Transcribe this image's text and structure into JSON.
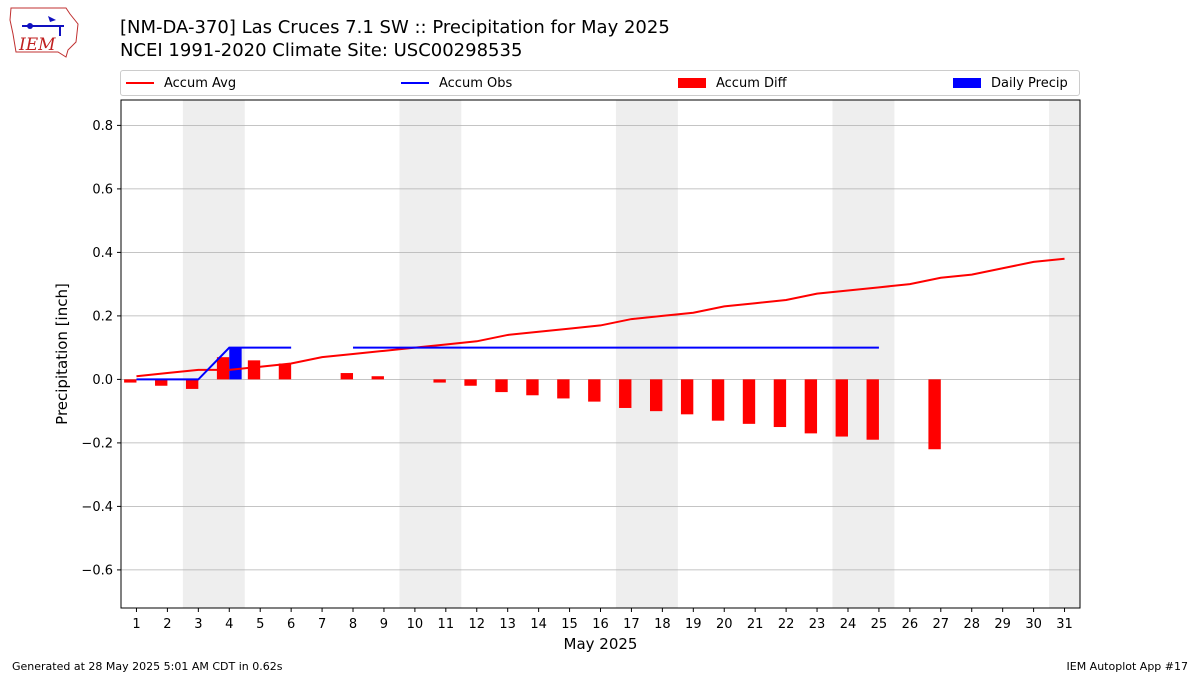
{
  "header": {
    "title_line1": "[NM-DA-370] Las Cruces 7.1 SW :: Precipitation for May 2025",
    "title_line2": "NCEI 1991-2020 Climate Site: USC00298535",
    "logo_text": "IEM"
  },
  "legend": {
    "items": [
      {
        "label": "Accum Avg",
        "kind": "line",
        "color": "#ff0000"
      },
      {
        "label": "Accum Obs",
        "kind": "line",
        "color": "#0000ff"
      },
      {
        "label": "Accum Diff",
        "kind": "box",
        "color": "#ff0000"
      },
      {
        "label": "Daily Precip",
        "kind": "box",
        "color": "#0000ff"
      }
    ]
  },
  "footer": {
    "left": "Generated at 28 May 2025 5:01 AM CDT in 0.62s",
    "right": "IEM Autoplot App #17"
  },
  "chart_data": {
    "type": "bar",
    "xlabel": "May 2025",
    "ylabel": "Precipitation [inch]",
    "ylim": [
      -0.72,
      0.88
    ],
    "xlim": [
      0.5,
      31.5
    ],
    "yticks": [
      -0.6,
      -0.4,
      -0.2,
      0.0,
      0.2,
      0.4,
      0.6,
      0.8
    ],
    "ytick_labels": [
      "−0.6",
      "−0.4",
      "−0.2",
      "0.0",
      "0.2",
      "0.4",
      "0.6",
      "0.8"
    ],
    "x": [
      1,
      2,
      3,
      4,
      5,
      6,
      7,
      8,
      9,
      10,
      11,
      12,
      13,
      14,
      15,
      16,
      17,
      18,
      19,
      20,
      21,
      22,
      23,
      24,
      25,
      26,
      27,
      28,
      29,
      30,
      31
    ],
    "grid": "horizontal",
    "weekend_shading": [
      [
        2.5,
        4.5
      ],
      [
        9.5,
        11.5
      ],
      [
        16.5,
        18.5
      ],
      [
        23.5,
        25.5
      ],
      [
        30.5,
        31.5
      ]
    ],
    "shade_color": "#eeeeee",
    "series": [
      {
        "name": "Accum Avg",
        "kind": "line",
        "color": "#ff0000",
        "values": [
          0.01,
          0.02,
          0.03,
          0.03,
          0.04,
          0.05,
          0.07,
          0.08,
          0.09,
          0.1,
          0.11,
          0.12,
          0.14,
          0.15,
          0.16,
          0.17,
          0.19,
          0.2,
          0.21,
          0.23,
          0.24,
          0.25,
          0.27,
          0.28,
          0.29,
          0.3,
          0.32,
          0.33,
          0.35,
          0.37,
          0.38
        ]
      },
      {
        "name": "Accum Obs",
        "kind": "line",
        "color": "#0000ff",
        "segments": [
          {
            "x": [
              1,
              2,
              3,
              4,
              5,
              6
            ],
            "values": [
              0.0,
              0.0,
              0.0,
              0.1,
              0.1,
              0.1
            ]
          },
          {
            "x": [
              8,
              9,
              10,
              11,
              12,
              13,
              14,
              15,
              16,
              17,
              18,
              19,
              20,
              21,
              22,
              23,
              24,
              25
            ],
            "values": [
              0.1,
              0.1,
              0.1,
              0.1,
              0.1,
              0.1,
              0.1,
              0.1,
              0.1,
              0.1,
              0.1,
              0.1,
              0.1,
              0.1,
              0.1,
              0.1,
              0.1,
              0.1
            ]
          }
        ]
      },
      {
        "name": "Accum Diff",
        "kind": "bar",
        "color": "#ff0000",
        "x": [
          1,
          2,
          3,
          4,
          5,
          6,
          8,
          9,
          11,
          12,
          13,
          14,
          15,
          16,
          17,
          18,
          19,
          20,
          21,
          22,
          23,
          24,
          25,
          27
        ],
        "values": [
          -0.01,
          -0.02,
          -0.03,
          0.07,
          0.06,
          0.05,
          0.02,
          0.01,
          -0.01,
          -0.02,
          -0.04,
          -0.05,
          -0.06,
          -0.07,
          -0.09,
          -0.1,
          -0.11,
          -0.13,
          -0.14,
          -0.15,
          -0.17,
          -0.18,
          -0.19,
          -0.22
        ]
      },
      {
        "name": "Daily Precip",
        "kind": "bar",
        "color": "#0000ff",
        "x": [
          4
        ],
        "values": [
          0.1
        ]
      }
    ]
  }
}
